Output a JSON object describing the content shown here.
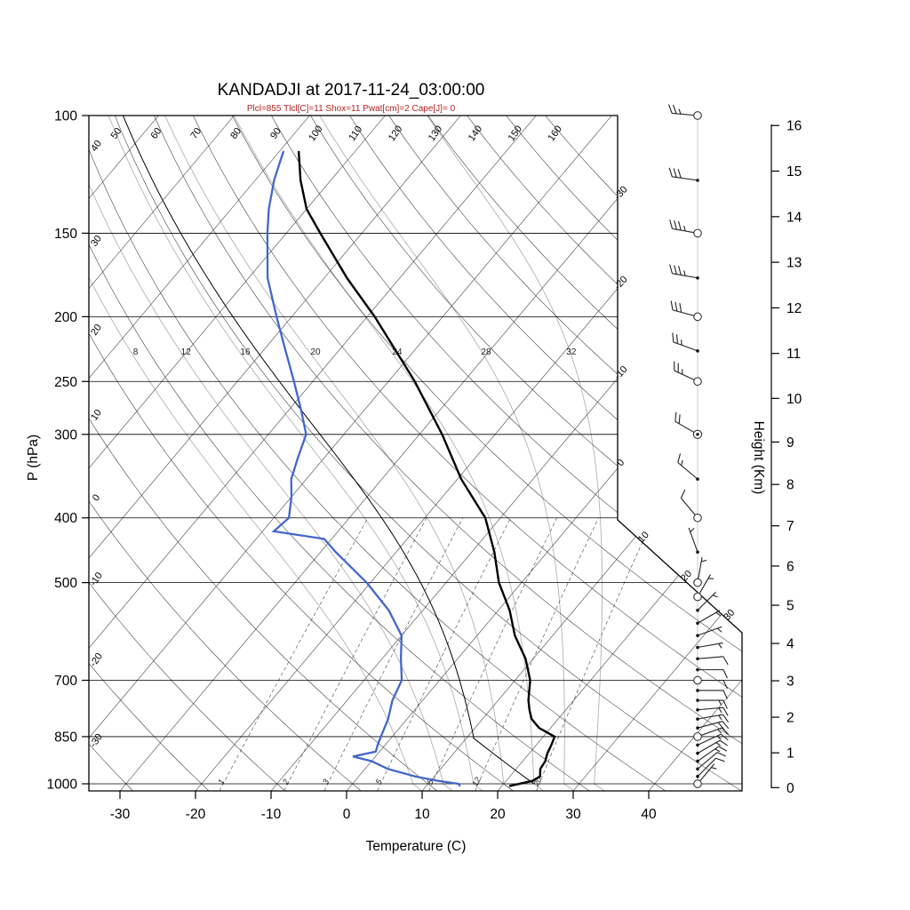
{
  "title": "KANDADJI at 2017-11-24_03:00:00",
  "subtitle": "Plcl=855 Tlcl[C]=11 Shox=11 Pwat[cm]=2 Cape[J]= 0",
  "colors": {
    "temperature": "#000000",
    "dewpoint": "#4466cc",
    "parcel": "#000000",
    "subtitle": "#b22222",
    "grid": "#333333",
    "moist_adiabat": "#b3b3b3",
    "outline": "#000000"
  },
  "chart_data": {
    "type": "skewt-log-p",
    "station": "KANDADJI",
    "datetime": "2017-11-24_03:00:00",
    "diagnostics": {
      "plcl_hpa": 855,
      "tlcl_c": 11,
      "showalter": 11,
      "pwat_cm": 2,
      "cape_j": 0
    },
    "pressure_axis": {
      "label": "P (hPa)",
      "ticks": [
        100,
        150,
        200,
        250,
        300,
        400,
        500,
        700,
        850,
        1000
      ]
    },
    "temperature_axis": {
      "label": "Temperature (C)",
      "ticks": [
        -30,
        -20,
        -10,
        0,
        10,
        20,
        30,
        40
      ]
    },
    "height_axis": {
      "label": "Height (Km)",
      "ticks": [
        0,
        1,
        2,
        3,
        4,
        5,
        6,
        7,
        8,
        9,
        10,
        11,
        12,
        13,
        14,
        15,
        16
      ],
      "tick_pressures": [
        1013.25,
        898.8,
        795.0,
        701.2,
        616.6,
        540.5,
        472.2,
        411.1,
        356.5,
        308.0,
        265.0,
        227.0,
        194.0,
        165.8,
        141.7,
        121.1,
        103.5
      ]
    },
    "background": {
      "isotherm_step_c": 10,
      "isotherm_labels": [
        -30,
        -20,
        -10,
        0,
        10,
        20,
        30
      ],
      "dry_adiabat_labels": [
        -30,
        -20,
        -10,
        0,
        10,
        20,
        30,
        40,
        50,
        60,
        70,
        80,
        90,
        100,
        110,
        120,
        130,
        140,
        150,
        160
      ],
      "moist_adiabat_labels": [
        8,
        12,
        16,
        20,
        24,
        28,
        32
      ],
      "mixing_ratio_labels": [
        1,
        2,
        3,
        5,
        8,
        12,
        20
      ]
    },
    "temperature_profile": [
      [
        1008,
        21
      ],
      [
        990,
        23.5
      ],
      [
        975,
        24
      ],
      [
        950,
        23.2
      ],
      [
        925,
        23
      ],
      [
        900,
        22.4
      ],
      [
        875,
        22
      ],
      [
        850,
        21.5
      ],
      [
        825,
        18.5
      ],
      [
        800,
        16.5
      ],
      [
        775,
        15.2
      ],
      [
        750,
        14
      ],
      [
        700,
        12
      ],
      [
        650,
        9
      ],
      [
        600,
        5
      ],
      [
        550,
        1.5
      ],
      [
        500,
        -3
      ],
      [
        450,
        -7
      ],
      [
        400,
        -12
      ],
      [
        350,
        -19.5
      ],
      [
        300,
        -27
      ],
      [
        250,
        -36.5
      ],
      [
        200,
        -49
      ],
      [
        175,
        -57
      ],
      [
        150,
        -65.5
      ],
      [
        138,
        -70
      ],
      [
        125,
        -74
      ],
      [
        113,
        -77.5
      ]
    ],
    "dewpoint_profile": [
      [
        1008,
        14.5
      ],
      [
        1000,
        14
      ],
      [
        990,
        11
      ],
      [
        975,
        7.5
      ],
      [
        950,
        3
      ],
      [
        925,
        0
      ],
      [
        910,
        -3
      ],
      [
        895,
        -0.5
      ],
      [
        875,
        -1
      ],
      [
        850,
        -1.5
      ],
      [
        800,
        -2.5
      ],
      [
        750,
        -4
      ],
      [
        700,
        -5
      ],
      [
        650,
        -7.5
      ],
      [
        600,
        -10
      ],
      [
        550,
        -14.5
      ],
      [
        500,
        -20.5
      ],
      [
        450,
        -28
      ],
      [
        430,
        -31
      ],
      [
        419,
        -38.5
      ],
      [
        400,
        -38
      ],
      [
        372,
        -40
      ],
      [
        350,
        -42
      ],
      [
        325,
        -43.5
      ],
      [
        300,
        -45
      ],
      [
        275,
        -48.5
      ],
      [
        250,
        -52.5
      ],
      [
        225,
        -57
      ],
      [
        200,
        -62
      ],
      [
        175,
        -67.5
      ],
      [
        150,
        -72.5
      ],
      [
        138,
        -75
      ],
      [
        125,
        -77.5
      ],
      [
        113,
        -79.5
      ]
    ],
    "parcel": {
      "surface_pressure": 1000,
      "surface_temp_c": 24,
      "lcl_pressure": 855,
      "lcl_temp_c": 11
    },
    "wind_barbs": [
      [
        1000,
        40,
        5,
        "circle"
      ],
      [
        975,
        45,
        10,
        "dot"
      ],
      [
        950,
        50,
        10,
        "dot"
      ],
      [
        925,
        55,
        15,
        "dot"
      ],
      [
        900,
        60,
        15,
        "dot"
      ],
      [
        875,
        65,
        15,
        "dot"
      ],
      [
        850,
        70,
        15,
        "circle"
      ],
      [
        825,
        75,
        20,
        "dot"
      ],
      [
        800,
        80,
        15,
        "dot"
      ],
      [
        775,
        85,
        15,
        "dot"
      ],
      [
        750,
        90,
        15,
        "dot"
      ],
      [
        725,
        90,
        10,
        "dot"
      ],
      [
        700,
        90,
        10,
        "circle"
      ],
      [
        675,
        90,
        10,
        "dot"
      ],
      [
        650,
        85,
        10,
        "dot"
      ],
      [
        625,
        80,
        5,
        "dot"
      ],
      [
        600,
        70,
        5,
        "dot"
      ],
      [
        575,
        60,
        5,
        "dot"
      ],
      [
        550,
        45,
        5,
        "dot"
      ],
      [
        525,
        30,
        5,
        "circle"
      ],
      [
        500,
        10,
        5,
        "circle"
      ],
      [
        450,
        340,
        5,
        "dot"
      ],
      [
        400,
        320,
        10,
        "circle"
      ],
      [
        350,
        310,
        15,
        "dot"
      ],
      [
        300,
        300,
        20,
        "double"
      ],
      [
        250,
        295,
        25,
        "circle"
      ],
      [
        225,
        290,
        25,
        "dot"
      ],
      [
        200,
        285,
        30,
        "circle"
      ],
      [
        175,
        280,
        35,
        "dot"
      ],
      [
        150,
        280,
        35,
        "circle"
      ],
      [
        125,
        278,
        30,
        "dot"
      ],
      [
        100,
        275,
        25,
        "circle"
      ]
    ]
  }
}
